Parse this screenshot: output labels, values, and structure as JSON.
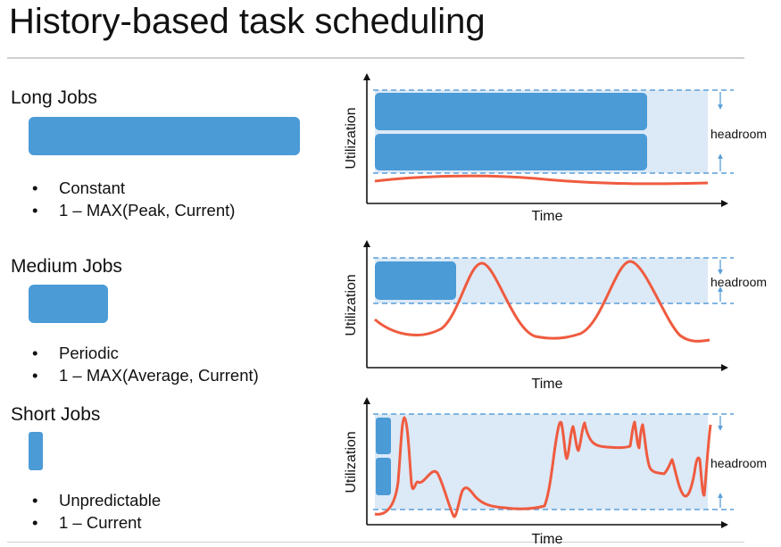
{
  "title": "History-based task scheduling",
  "colors": {
    "job_blue": "#4a9bd6",
    "headroom_fill": "#dce9f7",
    "curve": "#ef5b3f",
    "dashed": "#5b9fd8"
  },
  "sections": [
    {
      "label": "Long Jobs",
      "bullets": [
        "Constant",
        "1 – MAX(Peak, Current)"
      ]
    },
    {
      "label": "Medium Jobs",
      "bullets": [
        "Periodic",
        "1 – MAX(Average, Current)"
      ]
    },
    {
      "label": "Short Jobs",
      "bullets": [
        "Unpredictable",
        "1 – Current"
      ]
    }
  ],
  "bullet_glyph": "•",
  "diagrams": [
    {
      "ylabel": "Utilization",
      "xlabel": "Time",
      "headroom_label": "headroom"
    },
    {
      "ylabel": "Utilization",
      "xlabel": "Time",
      "headroom_label": "headroom"
    },
    {
      "ylabel": "Utilization",
      "xlabel": "Time",
      "headroom_label": "headroom"
    }
  ]
}
